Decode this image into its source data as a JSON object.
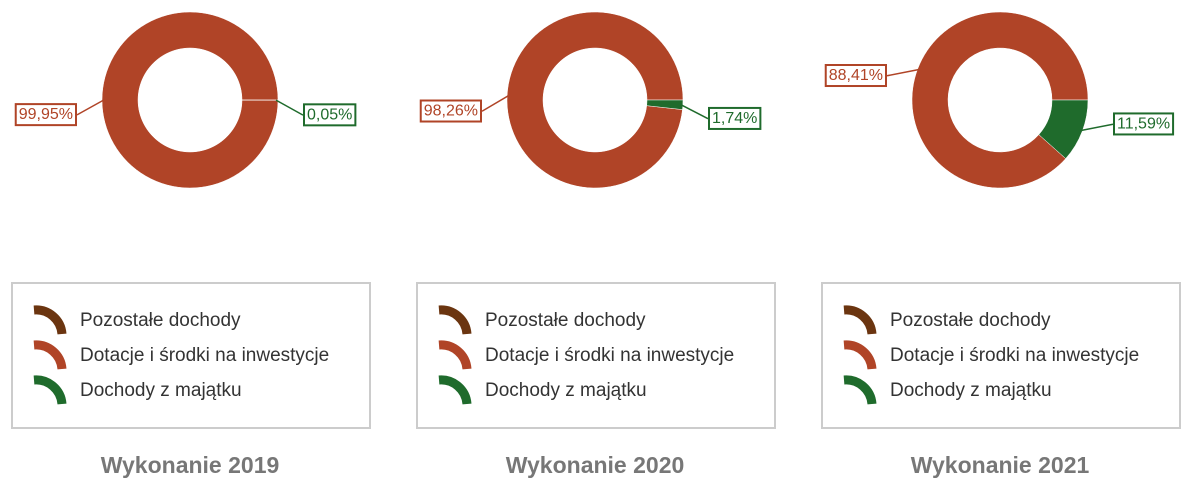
{
  "chart_data": [
    {
      "type": "pie",
      "donut": true,
      "title": "Wykonanie 2019",
      "categories": [
        "Pozostałe dochody",
        "Dotacje i środki na inwestycje",
        "Dochody z majątku"
      ],
      "values": [
        0,
        99.95,
        0.05
      ],
      "value_labels": [
        null,
        "99,95%",
        "0,05%"
      ],
      "colors": [
        "#6b3510",
        "#b04427",
        "#1f6b2c"
      ],
      "legend": "bottom"
    },
    {
      "type": "pie",
      "donut": true,
      "title": "Wykonanie 2020",
      "categories": [
        "Pozostałe dochody",
        "Dotacje i środki na inwestycje",
        "Dochody z majątku"
      ],
      "values": [
        0,
        98.26,
        1.74
      ],
      "value_labels": [
        null,
        "98,26%",
        "1,74%"
      ],
      "colors": [
        "#6b3510",
        "#b04427",
        "#1f6b2c"
      ],
      "legend": "bottom"
    },
    {
      "type": "pie",
      "donut": true,
      "title": "Wykonanie 2021",
      "categories": [
        "Pozostałe dochody",
        "Dotacje i środki na inwestycje",
        "Dochody z majątku"
      ],
      "values": [
        0,
        88.41,
        11.59
      ],
      "value_labels": [
        null,
        "88,41%",
        "11,59%"
      ],
      "colors": [
        "#6b3510",
        "#b04427",
        "#1f6b2c"
      ],
      "legend": "bottom"
    }
  ]
}
